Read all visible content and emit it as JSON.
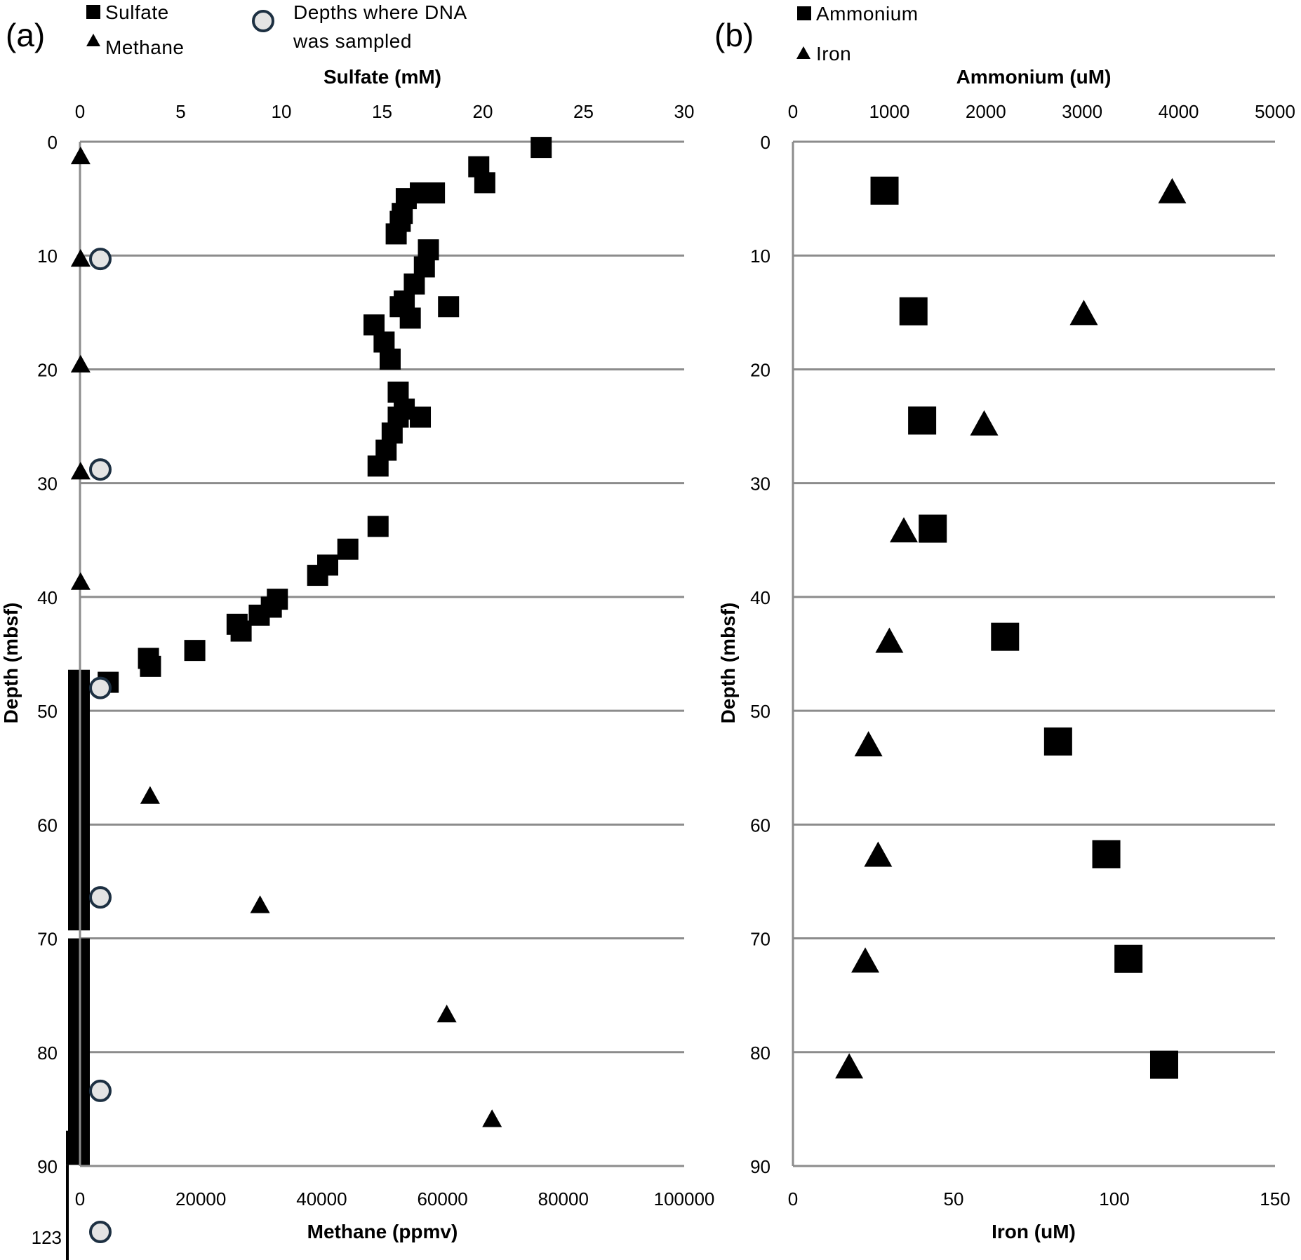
{
  "chart_data": [
    {
      "panel_label": "(a)",
      "type": "scatter",
      "yaxis": {
        "label": "Depth (mbsf)",
        "range": [
          0,
          90
        ],
        "inverted": true,
        "ticks": [
          "0",
          "10",
          "20",
          "30",
          "40",
          "50",
          "60",
          "70",
          "80",
          "90"
        ],
        "extra_tick": "123"
      },
      "x_top": {
        "label": "Sulfate (mM)",
        "range": [
          0,
          30
        ],
        "ticks": [
          "0",
          "5",
          "10",
          "15",
          "20",
          "25",
          "30"
        ]
      },
      "x_bottom": {
        "label": "Methane (ppmv)",
        "range": [
          0,
          100000
        ],
        "ticks": [
          "0",
          "20000",
          "40000",
          "60000",
          "80000",
          "100000"
        ]
      },
      "grid": "horizontal",
      "legend": [
        {
          "label": "Sulfate",
          "marker": "square"
        },
        {
          "label": "Methane",
          "marker": "triangle"
        },
        {
          "label": "Depths where DNA was sampled",
          "label_lines": [
            "Depths where DNA",
            "was sampled"
          ],
          "marker": "circle"
        }
      ],
      "series": [
        {
          "name": "Sulfate",
          "axis": "top",
          "marker": "square",
          "points": [
            [
              22.9,
              0.5
            ],
            [
              19.8,
              2.2
            ],
            [
              20.1,
              3.6
            ],
            [
              17.6,
              4.5
            ],
            [
              16.9,
              4.5
            ],
            [
              16.2,
              5.0
            ],
            [
              16,
              6.3
            ],
            [
              15.9,
              7.0
            ],
            [
              15.7,
              8.1
            ],
            [
              17.3,
              9.5
            ],
            [
              17.1,
              11.0
            ],
            [
              16.6,
              12.5
            ],
            [
              16.1,
              14.0
            ],
            [
              15.9,
              14.5
            ],
            [
              16.4,
              15.5
            ],
            [
              18.3,
              14.5
            ],
            [
              14.6,
              16.1
            ],
            [
              15.1,
              17.6
            ],
            [
              15.4,
              19.1
            ],
            [
              15.8,
              22.0
            ],
            [
              16.1,
              23.5
            ],
            [
              16.9,
              24.2
            ],
            [
              15.8,
              24.2
            ],
            [
              15.5,
              25.6
            ],
            [
              15.2,
              27.1
            ],
            [
              14.8,
              28.5
            ],
            [
              14.8,
              33.8
            ],
            [
              13.3,
              35.8
            ],
            [
              12.3,
              37.2
            ],
            [
              11.8,
              38.1
            ],
            [
              9.8,
              40.2
            ],
            [
              9.5,
              40.9
            ],
            [
              8.9,
              41.6
            ],
            [
              7.8,
              42.4
            ],
            [
              8.0,
              43.0
            ],
            [
              3.4,
              45.4
            ],
            [
              3.5,
              46.1
            ],
            [
              5.7,
              44.7
            ],
            [
              1.4,
              47.5
            ]
          ]
        },
        {
          "name": "Methane",
          "axis": "bottom",
          "marker": "triangle",
          "points": [
            [
              100,
              1.2
            ],
            [
              100,
              10.2
            ],
            [
              100,
              19.5
            ],
            [
              100,
              28.9
            ],
            [
              100,
              38.6
            ],
            [
              11600,
              57.4
            ],
            [
              29800,
              67.0
            ],
            [
              60700,
              76.6
            ],
            [
              68200,
              85.8
            ]
          ]
        },
        {
          "name": "Depths where DNA was sampled",
          "marker": "circle",
          "points_depth": [
            10.3,
            28.8,
            48.0,
            66.4,
            83.4,
            123
          ]
        },
        {
          "name": "depth-bars",
          "marker": "bar",
          "segments": [
            [
              46.4,
              69.3
            ],
            [
              70.0,
              89.9
            ],
            [
              86.9,
              89.9
            ]
          ]
        }
      ]
    },
    {
      "panel_label": "(b)",
      "type": "scatter",
      "yaxis": {
        "label": "Depth (mbsf)",
        "range": [
          0,
          90
        ],
        "inverted": true,
        "ticks": [
          "0",
          "10",
          "20",
          "30",
          "40",
          "50",
          "60",
          "70",
          "80",
          "90"
        ]
      },
      "x_top": {
        "label": "Ammonium (uM)",
        "range": [
          0,
          5000
        ],
        "ticks": [
          "0",
          "1000",
          "2000",
          "3000",
          "4000",
          "5000"
        ]
      },
      "x_bottom": {
        "label": "Iron (uM)",
        "range": [
          0,
          150
        ],
        "ticks": [
          "0",
          "50",
          "100",
          "150"
        ]
      },
      "grid": "horizontal",
      "legend": [
        {
          "label": "Ammonium",
          "marker": "square"
        },
        {
          "label": "Iron",
          "marker": "triangle"
        }
      ],
      "series": [
        {
          "name": "Ammonium",
          "axis": "top",
          "marker": "square",
          "points": [
            [
              950,
              4.3
            ],
            [
              1250,
              14.9
            ],
            [
              1340,
              24.5
            ],
            [
              1450,
              34.0
            ],
            [
              2200,
              43.5
            ],
            [
              2750,
              52.7
            ],
            [
              3250,
              62.6
            ],
            [
              3480,
              71.8
            ],
            [
              3850,
              81.1
            ]
          ]
        },
        {
          "name": "Iron",
          "axis": "bottom",
          "marker": "triangle",
          "points": [
            [
              118,
              4.3
            ],
            [
              90.5,
              15.0
            ],
            [
              59.5,
              24.7
            ],
            [
              34.5,
              34.1
            ],
            [
              30,
              43.8
            ],
            [
              23.5,
              52.9
            ],
            [
              26.5,
              62.6
            ],
            [
              22.5,
              71.9
            ],
            [
              17.5,
              81.2
            ]
          ]
        }
      ]
    }
  ]
}
